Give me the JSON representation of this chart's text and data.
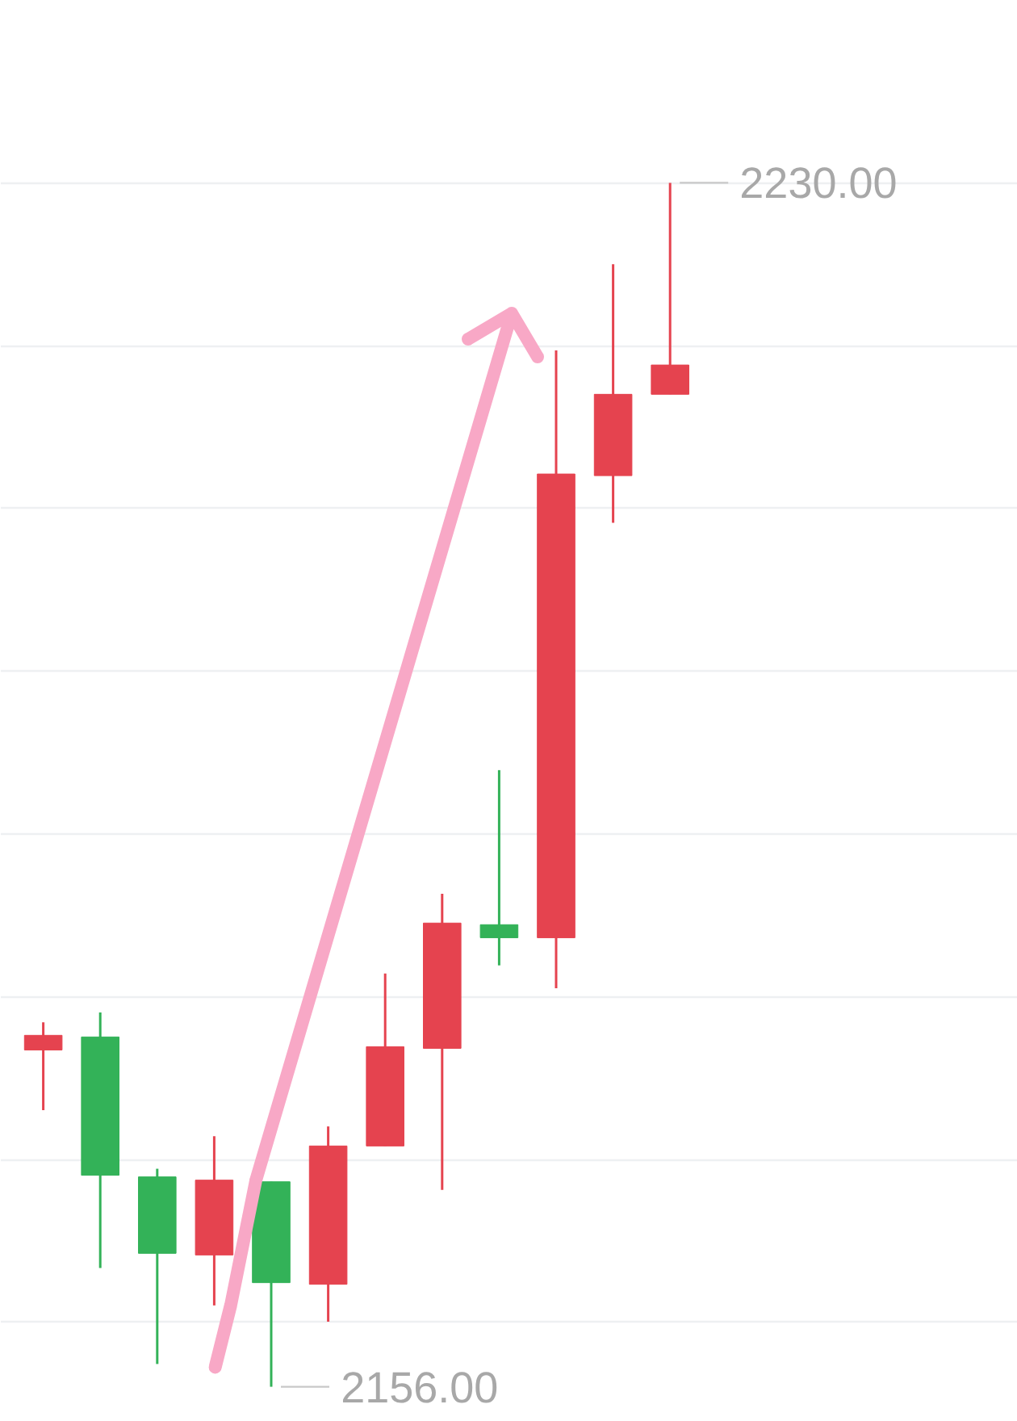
{
  "chart_data": {
    "type": "candlestick",
    "categories": [
      null,
      null,
      null,
      null,
      null,
      null,
      null,
      null,
      null,
      null,
      null,
      null
    ],
    "ohlc": [
      [
        2176.7,
        2178.4,
        2173.0,
        2177.6
      ],
      [
        2177.5,
        2179.0,
        2163.3,
        2169.0
      ],
      [
        2168.9,
        2169.4,
        2157.4,
        2164.2
      ],
      [
        2164.1,
        2171.4,
        2161.0,
        2168.7
      ],
      [
        2168.6,
        2168.6,
        2156.0,
        2162.4
      ],
      [
        2162.3,
        2172.0,
        2160.0,
        2170.8
      ],
      [
        2170.8,
        2181.4,
        2170.8,
        2176.9
      ],
      [
        2176.8,
        2186.3,
        2168.1,
        2184.5
      ],
      [
        2184.4,
        2193.9,
        2181.9,
        2183.6
      ],
      [
        2183.6,
        2219.7,
        2180.5,
        2212.1
      ],
      [
        2212.0,
        2225.0,
        2209.1,
        2217.0
      ],
      [
        2217.0,
        2230.0,
        2217.0,
        2218.8
      ]
    ],
    "colors": [
      "#e5434f",
      "#33b258",
      "#33b258",
      "#e5434f",
      "#33b258",
      "#e5434f",
      "#e5434f",
      "#e5434f",
      "#33b258",
      "#e5434f",
      "#e5434f",
      "#e5434f"
    ],
    "grid": "y",
    "tick_labels": false,
    "annotations": [
      "2230.00",
      "2156.00"
    ]
  }
}
